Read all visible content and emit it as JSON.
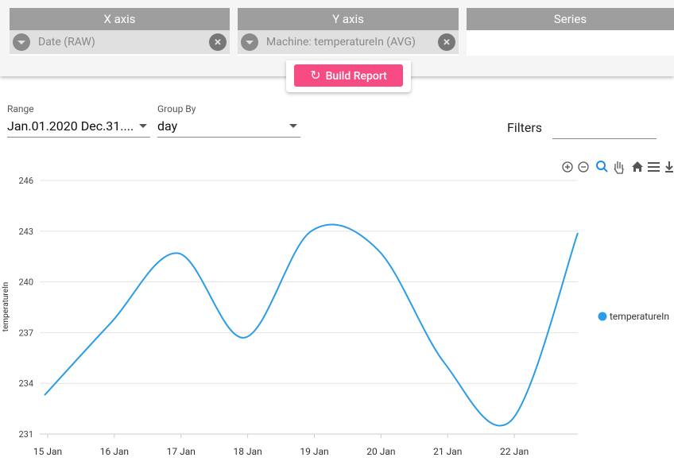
{
  "panels": [
    {
      "title": "X axis",
      "chip": "Date (RAW)"
    },
    {
      "title": "Y axis",
      "chip": "Machine: temperatureIn (AVG)"
    },
    {
      "title": "Series"
    }
  ],
  "build_button": "Build Report",
  "controls": {
    "range_label": "Range",
    "range_value": "Jan.01.2020 Dec.31....",
    "group_label": "Group By",
    "group_value": "day",
    "filters_label": "Filters"
  },
  "chart_data": {
    "type": "line",
    "categories": [
      "15 Jan",
      "16 Jan",
      "17 Jan",
      "18 Jan",
      "19 Jan",
      "20 Jan",
      "21 Jan",
      "22 Jan",
      null
    ],
    "y_label": "temperatureIn",
    "series": [
      {
        "name": "temperatureIn",
        "color": "#2a9ce8",
        "values": [
          233.3,
          237.6,
          241.7,
          236.7,
          243.0,
          241.9,
          235.2,
          231.8,
          242.9
        ]
      }
    ],
    "ylim": [
      231,
      246
    ],
    "yticks": [
      231,
      234,
      237,
      240,
      243,
      246
    ],
    "grid": true,
    "legend": "right"
  }
}
